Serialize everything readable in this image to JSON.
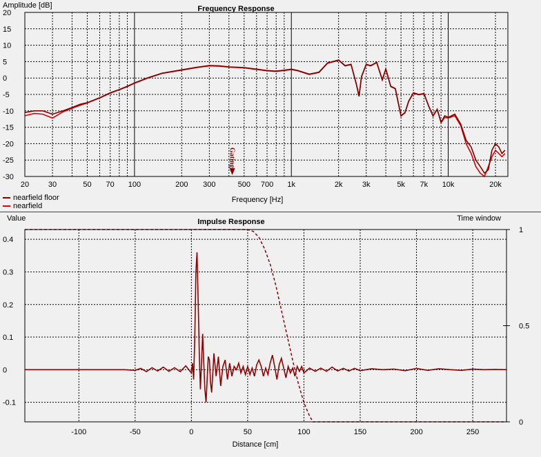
{
  "chart_data": [
    {
      "type": "line",
      "title": "Frequency Response",
      "xlabel": "Frequency [Hz]",
      "ylabel": "Amplitude [dB]",
      "xscale": "log",
      "xlim": [
        20,
        24000
      ],
      "ylim": [
        -30,
        20
      ],
      "grid": true,
      "legend_position": "bottom-left",
      "x_ticks": [
        {
          "v": 20,
          "label": "20"
        },
        {
          "v": 30,
          "label": "30"
        },
        {
          "v": 50,
          "label": "50"
        },
        {
          "v": 70,
          "label": "70"
        },
        {
          "v": 100,
          "label": "100"
        },
        {
          "v": 200,
          "label": "200"
        },
        {
          "v": 300,
          "label": "300"
        },
        {
          "v": 500,
          "label": "500"
        },
        {
          "v": 700,
          "label": "700"
        },
        {
          "v": 1000,
          "label": "1k"
        },
        {
          "v": 2000,
          "label": "2k"
        },
        {
          "v": 3000,
          "label": "3k"
        },
        {
          "v": 5000,
          "label": "5k"
        },
        {
          "v": 7000,
          "label": "7k"
        },
        {
          "v": 10000,
          "label": "10k"
        },
        {
          "v": 20000,
          "label": "20k"
        }
      ],
      "y_ticks": [
        20,
        15,
        10,
        5,
        0,
        -5,
        -10,
        -15,
        -20,
        -25,
        -30
      ],
      "marker": {
        "label": "Gating",
        "x": 420
      },
      "series": [
        {
          "name": "nearfield floor",
          "color": "#800000",
          "x": [
            20,
            23,
            26,
            30,
            35,
            40,
            45,
            50,
            60,
            70,
            80,
            90,
            100,
            120,
            150,
            200,
            250,
            300,
            350,
            400,
            450,
            500,
            600,
            700,
            800,
            900,
            1000,
            1100,
            1300,
            1500,
            1700,
            2000,
            2200,
            2400,
            2600,
            2700,
            2800,
            3000,
            3200,
            3500,
            3800,
            4000,
            4300,
            4600,
            5000,
            5300,
            5600,
            6000,
            6500,
            7000,
            7500,
            8000,
            8500,
            9000,
            9500,
            10000,
            11000,
            12000,
            13000,
            14000,
            15000,
            16000,
            17000,
            18000,
            19000,
            20000,
            21000,
            22000,
            23000
          ],
          "y": [
            -10.5,
            -10,
            -10,
            -11,
            -10,
            -9,
            -8,
            -7.5,
            -6,
            -4.5,
            -3.5,
            -2.5,
            -1.5,
            0,
            1.5,
            2.5,
            3.3,
            3.8,
            3.7,
            3.4,
            3.3,
            3.2,
            2.7,
            2.3,
            2.1,
            2.4,
            2.7,
            2.3,
            1.2,
            1.8,
            4.6,
            5.5,
            3.8,
            4.2,
            -2,
            -5.5,
            0.5,
            4.2,
            3.8,
            4.8,
            -0.5,
            2.8,
            -2.5,
            -3.2,
            -11.5,
            -10.5,
            -7,
            -4.5,
            -5,
            -4.7,
            -8.5,
            -11.5,
            -9.5,
            -13.5,
            -11.5,
            -12,
            -11,
            -14,
            -19,
            -21,
            -25,
            -27,
            -29,
            -28,
            -22,
            -20,
            -21,
            -23,
            -22
          ]
        },
        {
          "name": "nearfield",
          "color": "#e00000",
          "x": [
            20,
            23,
            26,
            30,
            35,
            40,
            45,
            50,
            60,
            70,
            80,
            90,
            100,
            120,
            150,
            200,
            250,
            300,
            350,
            400,
            450,
            500,
            600,
            700,
            800,
            900,
            1000,
            1100,
            1300,
            1500,
            1700,
            2000,
            2200,
            2400,
            2600,
            2700,
            2800,
            3000,
            3200,
            3500,
            3800,
            4000,
            4300,
            4600,
            5000,
            5300,
            5600,
            6000,
            6500,
            7000,
            7500,
            8000,
            8500,
            9000,
            9500,
            10000,
            11000,
            12000,
            13000,
            14000,
            15000,
            16000,
            17000,
            18000,
            19000,
            20000,
            21000,
            22000,
            23000
          ],
          "y": [
            -11.5,
            -10.8,
            -11,
            -12.2,
            -10.3,
            -9.2,
            -8.3,
            -7.6,
            -6.1,
            -4.6,
            -3.6,
            -2.6,
            -1.6,
            -0.1,
            1.4,
            2.4,
            3.2,
            3.7,
            3.6,
            3.3,
            3.2,
            3.1,
            2.6,
            2.2,
            2,
            2.3,
            2.6,
            2.2,
            1.1,
            1.7,
            4.5,
            5.4,
            3.7,
            4.1,
            -2.1,
            -5.6,
            0.4,
            4.1,
            3.7,
            4.7,
            -0.6,
            2.7,
            -2.6,
            -3.3,
            -11.6,
            -10.6,
            -7.1,
            -4.6,
            -5.1,
            -4.8,
            -8.6,
            -11.6,
            -9.6,
            -13.6,
            -12,
            -12.2,
            -11.5,
            -14.5,
            -20,
            -23,
            -27,
            -29,
            -30,
            -27,
            -24,
            -22,
            -23,
            -24,
            -23
          ]
        }
      ]
    },
    {
      "type": "line",
      "title": "Impulse Response",
      "xlabel": "Distance [cm]",
      "ylabel": "Value",
      "y2label": "Time window",
      "xlim": [
        -148,
        280
      ],
      "ylim": [
        -0.16,
        0.43
      ],
      "y2lim": [
        0,
        1
      ],
      "grid": true,
      "x_ticks": [
        -100,
        -50,
        0,
        50,
        100,
        150,
        200,
        250
      ],
      "y_ticks": [
        0.4,
        0.3,
        0.2,
        0.1,
        0,
        -0.1
      ],
      "y2_ticks": [
        {
          "v": 1,
          "label": "1"
        },
        {
          "v": 0.5,
          "label": "0.5"
        },
        {
          "v": 0,
          "label": "0"
        }
      ],
      "series": [
        {
          "name": "impulse",
          "color": "#900000",
          "x": [
            -148,
            -60,
            -50,
            -45,
            -40,
            -35,
            -30,
            -25,
            -20,
            -15,
            -10,
            -5,
            0,
            1,
            2,
            3,
            4,
            5,
            6,
            7,
            8,
            9,
            10,
            11,
            12,
            13,
            14,
            15,
            16,
            17,
            18,
            19,
            20,
            22,
            24,
            26,
            28,
            30,
            32,
            34,
            36,
            38,
            40,
            42,
            44,
            46,
            48,
            50,
            52,
            54,
            56,
            58,
            60,
            62,
            64,
            66,
            68,
            70,
            72,
            74,
            76,
            78,
            80,
            82,
            84,
            86,
            88,
            90,
            92,
            94,
            96,
            98,
            100,
            105,
            110,
            115,
            120,
            125,
            130,
            135,
            140,
            145,
            150,
            160,
            170,
            180,
            190,
            200,
            210,
            220,
            230,
            240,
            250,
            260,
            270,
            280
          ],
          "y": [
            0,
            0,
            -0.002,
            0.004,
            -0.006,
            0.006,
            -0.004,
            0.008,
            -0.005,
            0.006,
            -0.006,
            0.012,
            -0.01,
            0.02,
            -0.03,
            0.1,
            0.3,
            0.36,
            0.22,
            0.05,
            -0.06,
            0.02,
            0.11,
            0.02,
            -0.06,
            -0.1,
            -0.03,
            0.04,
            0.03,
            -0.04,
            -0.07,
            -0.01,
            0.05,
            -0.02,
            0.04,
            -0.05,
            0.01,
            0.03,
            -0.03,
            0.02,
            -0.02,
            0.01,
            0,
            0.02,
            -0.01,
            0.01,
            -0.015,
            0.01,
            -0.015,
            0.005,
            -0.02,
            0.015,
            0.03,
            0.01,
            -0.02,
            0.005,
            -0.015,
            0.02,
            0.045,
            0.01,
            -0.03,
            0.015,
            0.035,
            0.005,
            -0.025,
            0.01,
            -0.01,
            0.005,
            -0.02,
            0.01,
            -0.005,
            0.01,
            -0.01,
            0.005,
            -0.005,
            0.005,
            -0.005,
            0.008,
            -0.004,
            0.004,
            -0.004,
            0.004,
            -0.003,
            0.003,
            0,
            0.002,
            -0.003,
            0.004,
            -0.002,
            0.003,
            0,
            -0.002,
            0.002,
            0,
            0.001,
            0
          ]
        },
        {
          "name": "time window",
          "color": "#900000",
          "dashed": true,
          "axis": "y2",
          "x": [
            -148,
            50,
            55,
            60,
            65,
            70,
            75,
            80,
            85,
            90,
            95,
            100,
            105,
            108,
            280
          ],
          "y": [
            1,
            1,
            0.99,
            0.96,
            0.9,
            0.82,
            0.71,
            0.58,
            0.45,
            0.32,
            0.2,
            0.1,
            0.03,
            0,
            0
          ]
        }
      ]
    }
  ],
  "legend": {
    "items": [
      {
        "label": "nearfield floor",
        "color": "#800000"
      },
      {
        "label": "nearfield",
        "color": "#e00000"
      }
    ]
  }
}
